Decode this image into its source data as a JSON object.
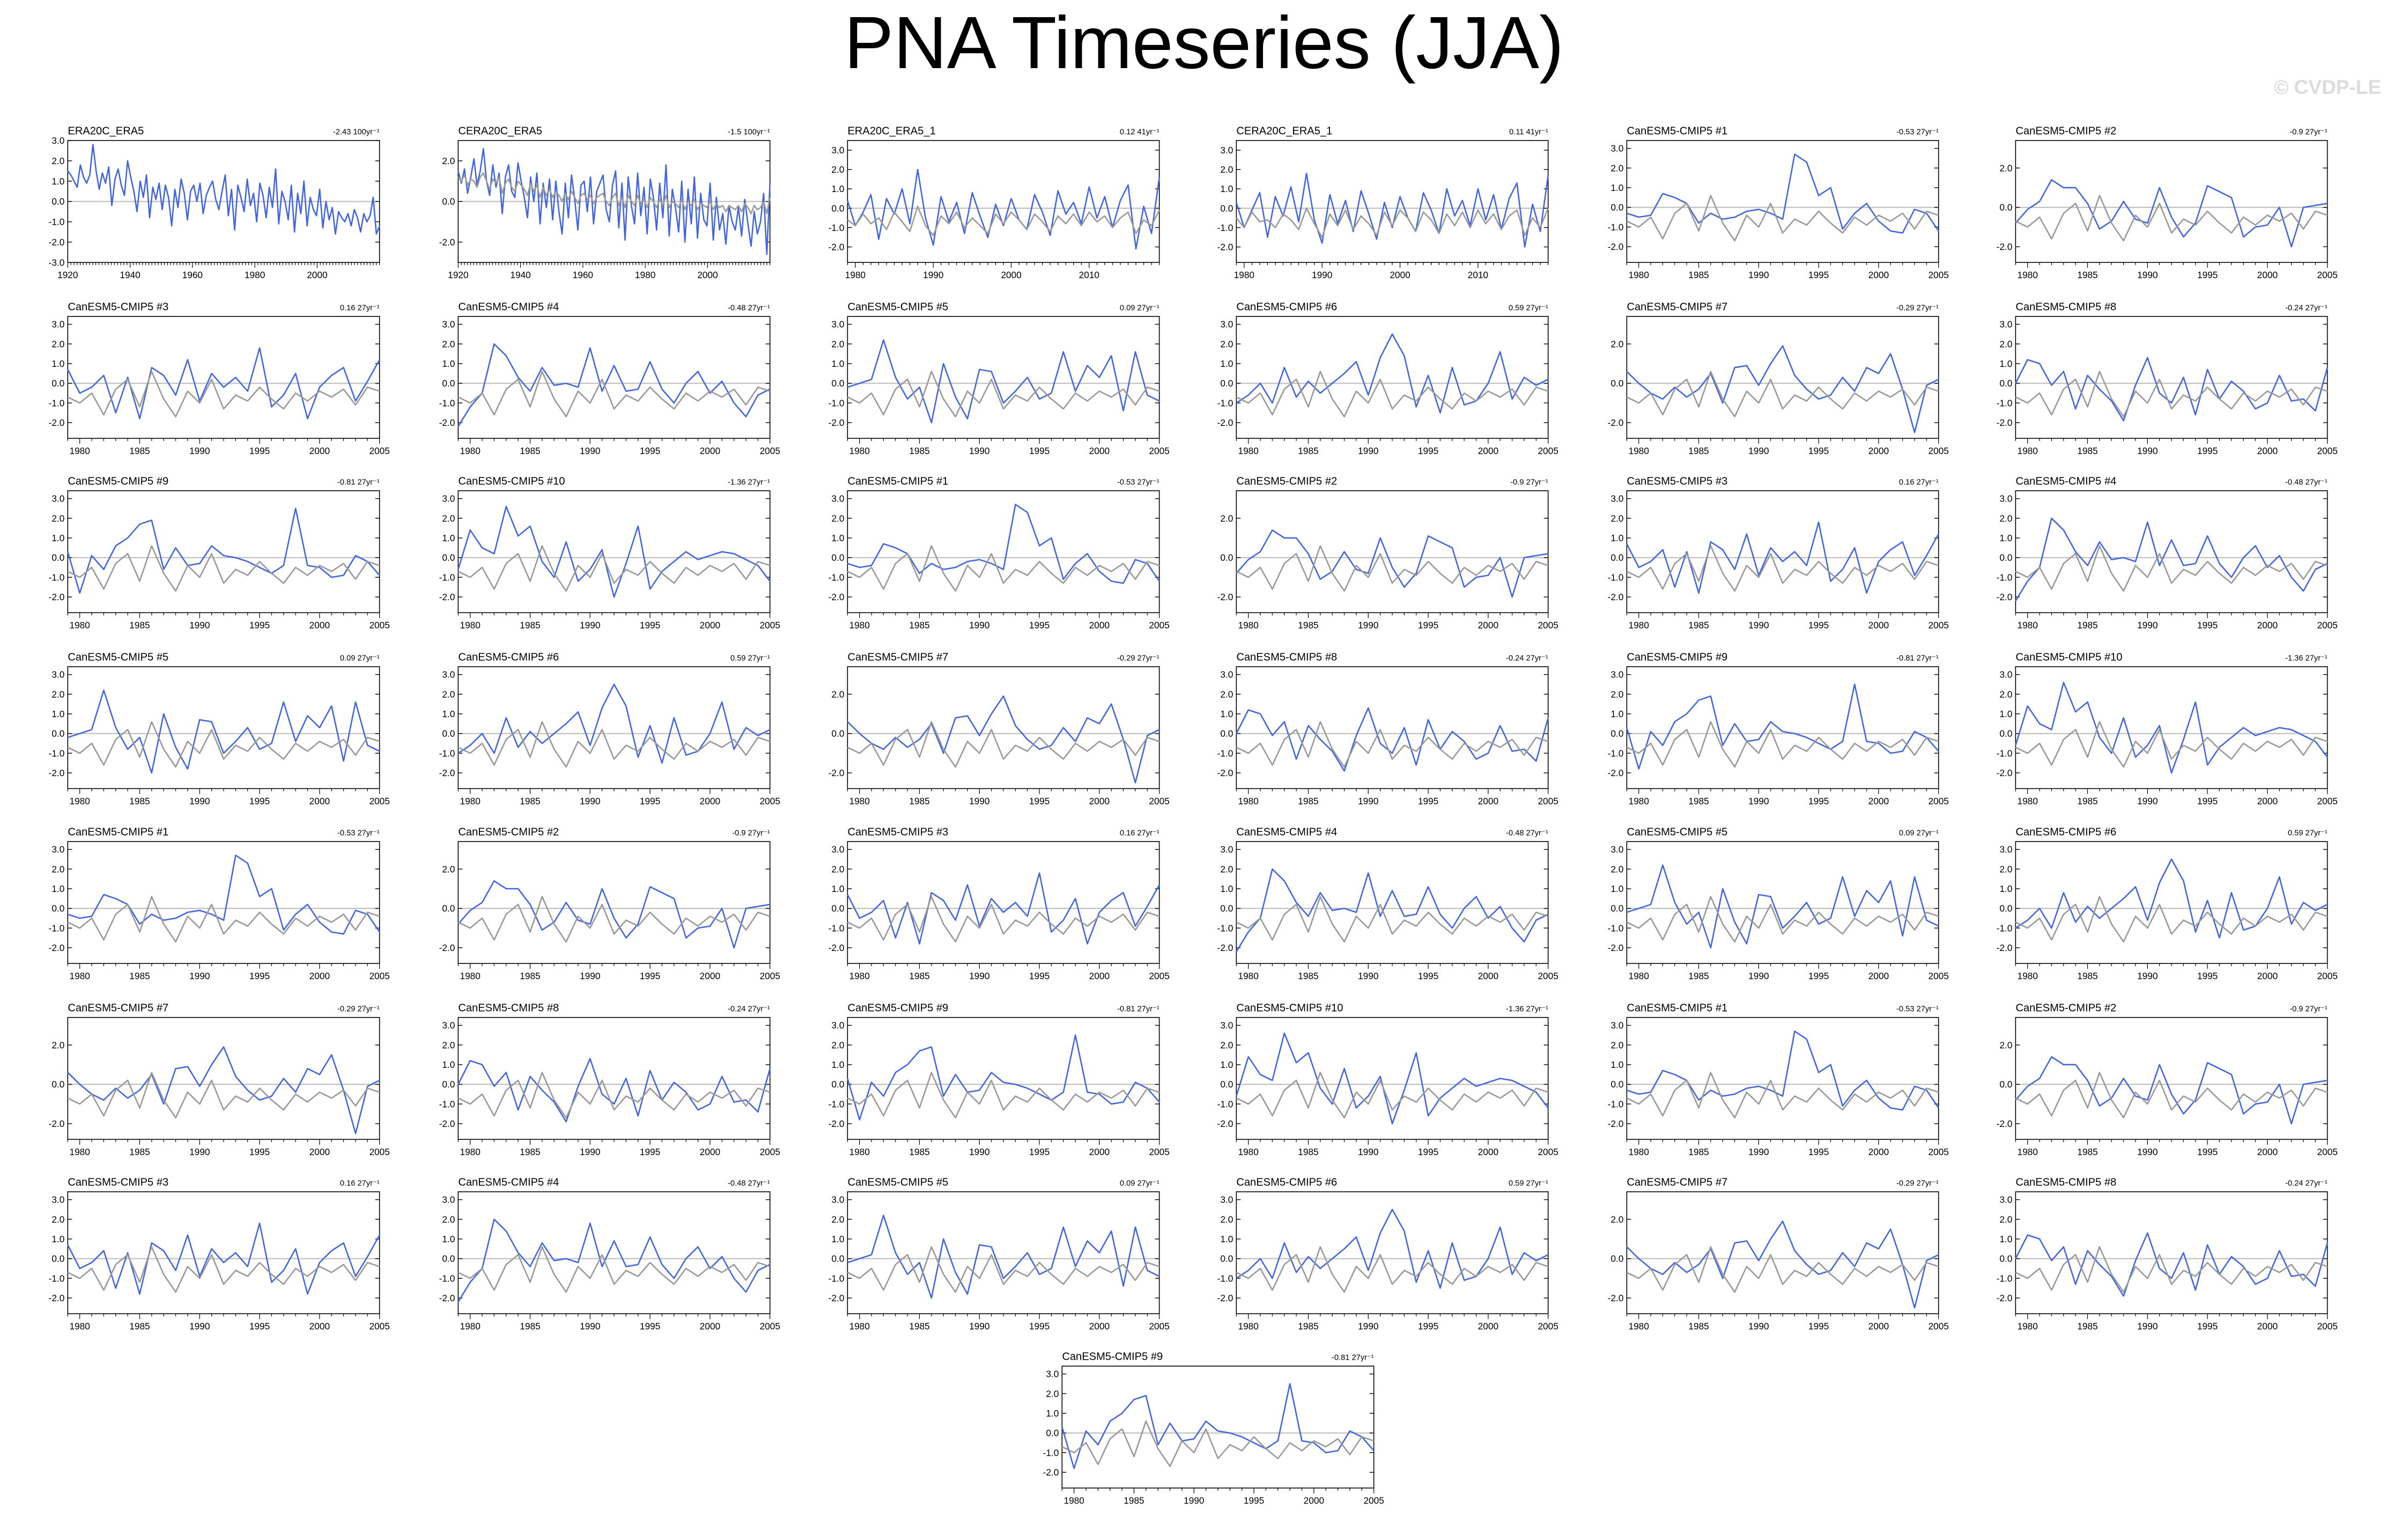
{
  "title": "PNA Timeseries (JJA)",
  "watermark": "© CVDP-LE",
  "colors": {
    "ensemble": "#4466dd",
    "obs": "#999999",
    "zero": "#bbbbbb",
    "title_obs": "#000000",
    "title_model": "#1a7a99"
  },
  "chart_data": [
    {
      "type": "line",
      "title": "ERA20C_ERA5",
      "trend": "-2.43 100yr⁻¹",
      "x_tick_labels": [
        "1920",
        "1940",
        "1960",
        "1980",
        "2000"
      ],
      "xlim": [
        1920,
        2020
      ],
      "y_tick_labels": [
        "3.0",
        "2.0",
        "1.0",
        "0.0",
        "-1.0",
        "-2.0",
        "-3.0"
      ],
      "ylim": [
        -3,
        3
      ],
      "series": [
        {
          "values": [
            1.5,
            1.3,
            1.0,
            0.7,
            1.8,
            1.2,
            0.9,
            1.3,
            2.8,
            1.5,
            0.6,
            1.4,
            0.9,
            1.7,
            -0.2,
            1.1,
            1.6,
            0.8,
            0.3,
            2.0,
            1.2,
            0.5,
            -0.5,
            1.0,
            0.2,
            1.3,
            -0.8,
            0.7,
            0.1,
            0.9,
            -0.4,
            0.8,
            0.2,
            -1.2,
            0.6,
            -0.3,
            1.1,
            0.4,
            -0.9,
            0.5,
            0.8,
            0.0,
            0.9,
            -0.6,
            0.3,
            0.7,
            1.0,
            0.1,
            -0.4,
            0.5,
            1.3,
            -0.7,
            0.6,
            -1.4,
            0.8,
            0.2,
            -0.5,
            1.1,
            -0.2,
            0.4,
            -1.0,
            0.9,
            0.3,
            -0.8,
            0.7,
            -0.3,
            1.6,
            -1.1,
            0.5,
            0.0,
            -0.9,
            0.8,
            -1.5,
            0.4,
            -0.6,
            1.0,
            -1.2,
            0.2,
            -0.4,
            -0.7,
            0.6,
            -1.3,
            0.0,
            -0.9,
            -0.3,
            -1.6,
            -0.5,
            -0.8,
            -1.0,
            -0.6,
            -1.2,
            -0.4,
            -0.8,
            -1.5,
            -0.6,
            -1.0,
            -0.7,
            0.2,
            -1.6,
            -1.2
          ]
        }
      ]
    },
    {
      "type": "line",
      "title": "CERA20C_ERA5",
      "trend": "-1.5 100yr⁻¹",
      "x_tick_labels": [
        "1920",
        "1940",
        "1960",
        "1980",
        "2000"
      ],
      "xlim": [
        1920,
        2020
      ],
      "y_tick_labels": [
        "2.0",
        "0.0",
        "-2.0"
      ],
      "ylim": [
        -3,
        3
      ],
      "series": [
        {
          "values": [
            1.5,
            0.9,
            1.6,
            0.4,
            1.2,
            2.1,
            0.8,
            1.5,
            2.6,
            1.0,
            0.3,
            1.8,
            0.7,
            1.4,
            -0.6,
            1.2,
            1.8,
            0.5,
            0.2,
            1.9,
            1.0,
            0.2,
            -0.8,
            1.2,
            0.0,
            1.4,
            -1.1,
            0.9,
            -0.3,
            1.1,
            -0.9,
            1.0,
            -0.5,
            -1.6,
            0.9,
            -0.8,
            1.3,
            0.1,
            -1.4,
            0.8,
            1.0,
            -0.5,
            1.2,
            -1.1,
            0.5,
            0.9,
            1.3,
            -0.4,
            -1.0,
            0.8,
            1.5,
            -1.3,
            0.9,
            -1.9,
            1.2,
            -0.2,
            -1.1,
            1.4,
            -0.7,
            0.7,
            -1.6,
            1.1,
            0.2,
            -1.4,
            0.9,
            -0.8,
            1.8,
            -1.7,
            0.6,
            -0.3,
            -1.5,
            1.0,
            -2.0,
            0.6,
            -1.1,
            1.2,
            -1.8,
            0.4,
            -0.9,
            -1.2,
            0.9,
            -1.9,
            0.2,
            -1.4,
            -0.6,
            -2.1,
            -0.2,
            -1.0,
            -1.4,
            -0.3,
            -1.7,
            0.1,
            -1.1,
            -2.2,
            -0.5,
            -1.6,
            -1.0,
            0.4,
            -2.6,
            0.9
          ]
        },
        {
          "values": [
            1.2,
            1.0,
            1.3,
            0.8,
            1.1,
            1.0,
            0.7,
            1.2,
            1.4,
            1.0,
            0.6,
            1.1,
            0.9,
            1.2,
            0.4,
            0.9,
            1.1,
            0.7,
            0.5,
            1.0,
            0.8,
            0.6,
            0.3,
            0.9,
            0.5,
            0.8,
            0.2,
            0.7,
            0.3,
            0.6,
            0.2,
            0.5,
            0.3,
            0.0,
            0.4,
            0.1,
            0.5,
            0.2,
            -0.1,
            0.3,
            0.4,
            0.1,
            0.3,
            -0.1,
            0.2,
            0.3,
            0.4,
            0.0,
            -0.2,
            0.2,
            0.4,
            -0.2,
            0.2,
            -0.3,
            0.3,
            0.0,
            -0.2,
            0.3,
            -0.1,
            0.1,
            -0.3,
            0.2,
            0.0,
            -0.3,
            0.1,
            -0.2,
            0.3,
            -0.3,
            0.0,
            -0.1,
            -0.3,
            0.1,
            -0.4,
            0.0,
            -0.2,
            0.1,
            -0.4,
            -0.1,
            -0.2,
            -0.3,
            0.0,
            -0.4,
            -0.1,
            -0.3,
            -0.2,
            -0.5,
            -0.2,
            -0.3,
            -0.4,
            -0.2,
            -0.5,
            -0.1,
            -0.3,
            -0.6,
            -0.2,
            -0.4,
            -0.3,
            0.0,
            -0.6,
            0.2
          ]
        }
      ]
    },
    {
      "type": "line",
      "title": "ERA20C_ERA5_1",
      "trend": "0.12 41yr⁻¹",
      "x_tick_labels": [
        "1980",
        "1990",
        "2000",
        "2010"
      ],
      "xlim": [
        1979,
        2019
      ],
      "y_tick_labels": [
        "3.0",
        "2.0",
        "1.0",
        "0.0",
        "-1.0",
        "-2.0"
      ],
      "ylim": [
        -2.8,
        3.5
      ],
      "series": [
        {
          "values": [
            0.4,
            -0.9,
            -0.2,
            0.7,
            -1.6,
            0.5,
            -0.3,
            1.0,
            -0.8,
            2.0,
            -0.5,
            -1.9,
            0.6,
            -0.7,
            0.3,
            -1.3,
            0.8,
            -0.4,
            -1.5,
            0.2,
            -0.9,
            0.5,
            -0.6,
            -1.1,
            0.7,
            -0.2,
            -1.4,
            0.9,
            -0.3,
            0.3,
            -0.8,
            1.1,
            -0.5,
            0.6,
            -1.0,
            0.4,
            1.2,
            -2.1,
            0.1,
            -1.3,
            1.6
          ]
        },
        {
          "values": [
            -0.6,
            -0.9,
            -0.3,
            -0.8,
            -0.5,
            -1.1,
            -0.2,
            -0.7,
            -1.2,
            0.1,
            -0.9,
            -1.4,
            -0.4,
            -0.8,
            -0.2,
            -1.0,
            -0.5,
            -0.9,
            -1.3,
            -0.3,
            -0.8,
            -0.2,
            -0.6,
            -1.1,
            -0.3,
            -0.7,
            -1.2,
            -0.4,
            -0.8,
            -0.3,
            -0.9,
            -0.2,
            -0.7,
            -0.4,
            -1.0,
            -0.5,
            -0.2,
            -1.3,
            -0.6,
            -0.9,
            -0.1
          ]
        }
      ]
    },
    {
      "type": "line",
      "title": "CERA20C_ERA5_1",
      "trend": "0.11 41yr⁻¹",
      "x_tick_labels": [
        "1980",
        "1990",
        "2000",
        "2010"
      ],
      "xlim": [
        1979,
        2019
      ],
      "y_tick_labels": [
        "3.0",
        "2.0",
        "1.0",
        "0.0",
        "-1.0",
        "-2.0"
      ],
      "ylim": [
        -2.8,
        3.5
      ],
      "series": [
        {
          "values": [
            0.3,
            -1.0,
            -0.1,
            0.8,
            -1.5,
            0.6,
            -0.4,
            1.1,
            -0.7,
            1.8,
            -0.6,
            -1.8,
            0.7,
            -0.8,
            0.4,
            -1.2,
            0.9,
            -0.3,
            -1.6,
            0.3,
            -1.0,
            0.6,
            -0.5,
            -1.2,
            0.8,
            -0.1,
            -1.3,
            1.0,
            -0.4,
            0.4,
            -0.9,
            1.0,
            -0.6,
            0.7,
            -1.1,
            0.5,
            1.3,
            -2.0,
            0.2,
            -1.2,
            1.7
          ]
        },
        {
          "values": [
            -0.5,
            -1.0,
            -0.2,
            -0.7,
            -0.6,
            -1.0,
            -0.3,
            -0.6,
            -1.1,
            0.0,
            -0.8,
            -1.5,
            -0.3,
            -0.9,
            -0.1,
            -1.1,
            -0.4,
            -0.8,
            -1.4,
            -0.2,
            -0.9,
            -0.1,
            -0.5,
            -1.2,
            -0.2,
            -0.6,
            -1.3,
            -0.3,
            -0.9,
            -0.2,
            -1.0,
            -0.1,
            -0.8,
            -0.3,
            -1.1,
            -0.4,
            -0.1,
            -1.4,
            -0.5,
            -1.0,
            0.0
          ]
        }
      ]
    }
  ],
  "ensemble_panels": [
    {
      "title": "CanESM5-CMIP5 #1",
      "trend": "-0.53 27yr⁻¹"
    },
    {
      "title": "CanESM5-CMIP5 #2",
      "trend": "-0.9 27yr⁻¹"
    },
    {
      "title": "CanESM5-CMIP5 #3",
      "trend": "0.16 27yr⁻¹"
    },
    {
      "title": "CanESM5-CMIP5 #4",
      "trend": "-0.48 27yr⁻¹"
    },
    {
      "title": "CanESM5-CMIP5 #5",
      "trend": "0.09 27yr⁻¹"
    },
    {
      "title": "CanESM5-CMIP5 #6",
      "trend": "0.59 27yr⁻¹"
    },
    {
      "title": "CanESM5-CMIP5 #7",
      "trend": "-0.29 27yr⁻¹"
    },
    {
      "title": "CanESM5-CMIP5 #8",
      "trend": "-0.24 27yr⁻¹"
    },
    {
      "title": "CanESM5-CMIP5 #9",
      "trend": "-0.81 27yr⁻¹"
    },
    {
      "title": "CanESM5-CMIP5 #10",
      "trend": "-1.36 27yr⁻¹"
    },
    {
      "title": "CanESM5-CMIP5 #1",
      "trend": "-0.53 27yr⁻¹"
    },
    {
      "title": "CanESM5-CMIP5 #2",
      "trend": "-0.9 27yr⁻¹"
    },
    {
      "title": "CanESM5-CMIP5 #3",
      "trend": "0.16 27yr⁻¹"
    },
    {
      "title": "CanESM5-CMIP5 #4",
      "trend": "-0.48 27yr⁻¹"
    },
    {
      "title": "CanESM5-CMIP5 #5",
      "trend": "0.09 27yr⁻¹"
    },
    {
      "title": "CanESM5-CMIP5 #6",
      "trend": "0.59 27yr⁻¹"
    },
    {
      "title": "CanESM5-CMIP5 #7",
      "trend": "-0.29 27yr⁻¹"
    },
    {
      "title": "CanESM5-CMIP5 #8",
      "trend": "-0.24 27yr⁻¹"
    },
    {
      "title": "CanESM5-CMIP5 #9",
      "trend": "-0.81 27yr⁻¹"
    },
    {
      "title": "CanESM5-CMIP5 #10",
      "trend": "-1.36 27yr⁻¹"
    },
    {
      "title": "CanESM5-CMIP5 #1",
      "trend": "-0.53 27yr⁻¹"
    },
    {
      "title": "CanESM5-CMIP5 #2",
      "trend": "-0.9 27yr⁻¹"
    },
    {
      "title": "CanESM5-CMIP5 #3",
      "trend": "0.16 27yr⁻¹"
    },
    {
      "title": "CanESM5-CMIP5 #4",
      "trend": "-0.48 27yr⁻¹"
    },
    {
      "title": "CanESM5-CMIP5 #5",
      "trend": "0.09 27yr⁻¹"
    },
    {
      "title": "CanESM5-CMIP5 #6",
      "trend": "0.59 27yr⁻¹"
    },
    {
      "title": "CanESM5-CMIP5 #7",
      "trend": "-0.29 27yr⁻¹"
    },
    {
      "title": "CanESM5-CMIP5 #8",
      "trend": "-0.24 27yr⁻¹"
    },
    {
      "title": "CanESM5-CMIP5 #9",
      "trend": "-0.81 27yr⁻¹"
    },
    {
      "title": "CanESM5-CMIP5 #10",
      "trend": "-1.36 27yr⁻¹"
    },
    {
      "title": "CanESM5-CMIP5 #1",
      "trend": "-0.53 27yr⁻¹"
    },
    {
      "title": "CanESM5-CMIP5 #2",
      "trend": "-0.9 27yr⁻¹"
    },
    {
      "title": "CanESM5-CMIP5 #3",
      "trend": "0.16 27yr⁻¹"
    },
    {
      "title": "CanESM5-CMIP5 #4",
      "trend": "-0.48 27yr⁻¹"
    },
    {
      "title": "CanESM5-CMIP5 #5",
      "trend": "0.09 27yr⁻¹"
    },
    {
      "title": "CanESM5-CMIP5 #6",
      "trend": "0.59 27yr⁻¹"
    },
    {
      "title": "CanESM5-CMIP5 #7",
      "trend": "-0.29 27yr⁻¹"
    },
    {
      "title": "CanESM5-CMIP5 #8",
      "trend": "-0.24 27yr⁻¹"
    },
    {
      "title": "CanESM5-CMIP5 #9",
      "trend": "-0.81 27yr⁻¹"
    }
  ],
  "ensemble_axis": {
    "x_tick_labels": [
      "1980",
      "1985",
      "1990",
      "1995",
      "2000",
      "2005"
    ],
    "xlim": [
      1979,
      2005
    ],
    "y_tick_labels_a": [
      "3.0",
      "2.0",
      "1.0",
      "0.0",
      "-1.0",
      "-2.0"
    ],
    "y_tick_labels_b": [
      "2.0",
      "0.0",
      "-2.0"
    ],
    "ylim": [
      -2.8,
      3.4
    ]
  },
  "ensemble_series": {
    "1": [
      -0.3,
      -0.5,
      -0.4,
      0.7,
      0.5,
      0.2,
      -0.8,
      -0.3,
      -0.6,
      -0.5,
      -0.2,
      -0.1,
      -0.3,
      -0.6,
      2.7,
      2.3,
      0.6,
      1.0,
      -1.1,
      -0.3,
      0.2,
      -0.7,
      -1.2,
      -1.3,
      -0.1,
      -0.3,
      -1.2
    ],
    "2": [
      -0.8,
      -0.1,
      0.3,
      1.4,
      1.0,
      1.0,
      0.2,
      -1.1,
      -0.7,
      0.3,
      -0.6,
      -0.8,
      1.0,
      -0.5,
      -1.5,
      -0.8,
      1.1,
      0.8,
      0.5,
      -1.5,
      -1.0,
      -0.9,
      0.0,
      -2.0,
      0.0,
      0.1,
      0.2
    ],
    "3": [
      0.7,
      -0.5,
      -0.2,
      0.4,
      -1.5,
      0.3,
      -1.8,
      0.8,
      0.4,
      -0.6,
      1.2,
      -0.9,
      0.5,
      -0.2,
      0.3,
      -0.4,
      1.8,
      -1.2,
      -0.6,
      0.5,
      -1.8,
      -0.2,
      0.4,
      0.8,
      -0.9,
      0.1,
      1.2
    ],
    "4": [
      -2.2,
      -1.2,
      -0.5,
      2.0,
      1.4,
      0.3,
      -0.4,
      0.8,
      -0.1,
      0.0,
      -0.2,
      1.8,
      -0.4,
      0.9,
      -0.4,
      -0.3,
      1.1,
      -0.3,
      -1.0,
      0.0,
      0.6,
      -0.5,
      0.1,
      -1.0,
      -1.7,
      -0.6,
      -0.3
    ],
    "5": [
      -0.2,
      0.0,
      0.2,
      2.2,
      0.3,
      -0.8,
      -0.2,
      -2.0,
      1.0,
      -0.7,
      -1.8,
      0.7,
      0.6,
      -1.0,
      -0.4,
      0.3,
      -0.8,
      -0.5,
      1.6,
      -0.4,
      0.9,
      0.3,
      1.4,
      -1.4,
      1.6,
      -0.6,
      -0.9
    ],
    "6": [
      -1.0,
      -0.6,
      0.0,
      -1.0,
      0.8,
      -0.7,
      0.1,
      -0.5,
      0.0,
      0.5,
      1.1,
      -0.6,
      1.3,
      2.5,
      1.4,
      -1.2,
      0.4,
      -1.5,
      0.8,
      -1.1,
      -0.9,
      0.0,
      1.6,
      -0.8,
      0.3,
      -0.1,
      0.2
    ],
    "7": [
      0.6,
      0.0,
      -0.5,
      -0.8,
      -0.2,
      -0.7,
      -0.3,
      0.5,
      -1.0,
      0.8,
      0.9,
      -0.1,
      1.0,
      1.9,
      0.4,
      -0.3,
      -0.8,
      -0.6,
      0.3,
      -0.4,
      0.8,
      0.5,
      1.5,
      -0.3,
      -2.5,
      -0.1,
      0.2
    ],
    "8": [
      0.0,
      1.2,
      1.0,
      -0.1,
      0.6,
      -1.3,
      0.4,
      -0.3,
      -0.9,
      -1.9,
      -0.1,
      1.3,
      -0.5,
      -1.0,
      0.3,
      -1.6,
      0.7,
      -0.8,
      0.1,
      -0.4,
      -1.3,
      -1.0,
      0.4,
      -0.9,
      -0.8,
      -1.4,
      0.8
    ],
    "9": [
      0.3,
      -1.8,
      0.1,
      -0.6,
      0.6,
      1.0,
      1.7,
      1.9,
      -0.6,
      0.5,
      -0.4,
      -0.3,
      0.6,
      0.1,
      0.0,
      -0.2,
      -0.5,
      -0.8,
      -0.4,
      2.5,
      -0.4,
      -0.5,
      -1.0,
      -0.9,
      0.1,
      -0.2,
      -0.9
    ],
    "10": [
      -0.6,
      1.4,
      0.5,
      0.2,
      2.6,
      1.1,
      1.6,
      -0.2,
      -1.0,
      0.8,
      -1.2,
      -0.6,
      0.4,
      -2.0,
      -0.3,
      1.6,
      -1.6,
      -0.7,
      -0.2,
      0.3,
      -0.1,
      0.1,
      0.3,
      0.2,
      -0.1,
      -0.4,
      -1.2
    ]
  },
  "obs_series": [
    -0.7,
    -1.0,
    -0.5,
    -1.6,
    -0.3,
    0.2,
    -1.2,
    0.6,
    -0.8,
    -1.7,
    -0.4,
    -1.0,
    0.2,
    -1.3,
    -0.6,
    -0.9,
    -0.2,
    -0.8,
    -1.3,
    -0.5,
    -0.9,
    -0.4,
    -0.7,
    -0.3,
    -1.1,
    -0.2,
    -0.4
  ]
}
